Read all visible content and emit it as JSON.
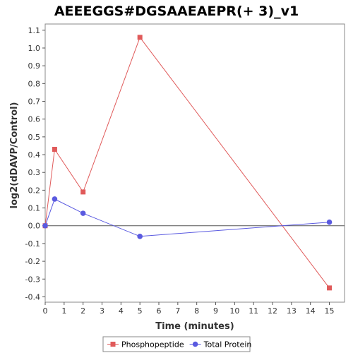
{
  "chart_data": {
    "type": "line",
    "title": "AEEEGGS#DGSAAEAEPR(+ 3)_v1",
    "xlabel": "Time (minutes)",
    "ylabel": "log2(dDAVP/Control)",
    "xlim": [
      0,
      15.8
    ],
    "ylim": [
      -0.43,
      1.135
    ],
    "x_ticks": [
      0,
      1,
      2,
      3,
      4,
      5,
      6,
      7,
      8,
      9,
      10,
      11,
      12,
      13,
      14,
      15
    ],
    "y_ticks": [
      -0.4,
      -0.3,
      -0.2,
      -0.1,
      0.0,
      0.1,
      0.2,
      0.3,
      0.4,
      0.5,
      0.6,
      0.7,
      0.8,
      0.9,
      1.0,
      1.1
    ],
    "zero_line": true,
    "grid": false,
    "legend_position": "bottom",
    "series": [
      {
        "name": "Phosphopeptide",
        "color": "#e05a5a",
        "marker": "square",
        "points": [
          {
            "x": 0,
            "y": 0.0
          },
          {
            "x": 0.5,
            "y": 0.43
          },
          {
            "x": 2,
            "y": 0.19
          },
          {
            "x": 5,
            "y": 1.06
          },
          {
            "x": 15,
            "y": -0.35
          }
        ]
      },
      {
        "name": "Total Protein",
        "color": "#5a5ae0",
        "marker": "circle",
        "points": [
          {
            "x": 0,
            "y": 0.0
          },
          {
            "x": 0.5,
            "y": 0.15
          },
          {
            "x": 2,
            "y": 0.07
          },
          {
            "x": 5,
            "y": -0.06
          },
          {
            "x": 15,
            "y": 0.02
          }
        ]
      }
    ]
  }
}
